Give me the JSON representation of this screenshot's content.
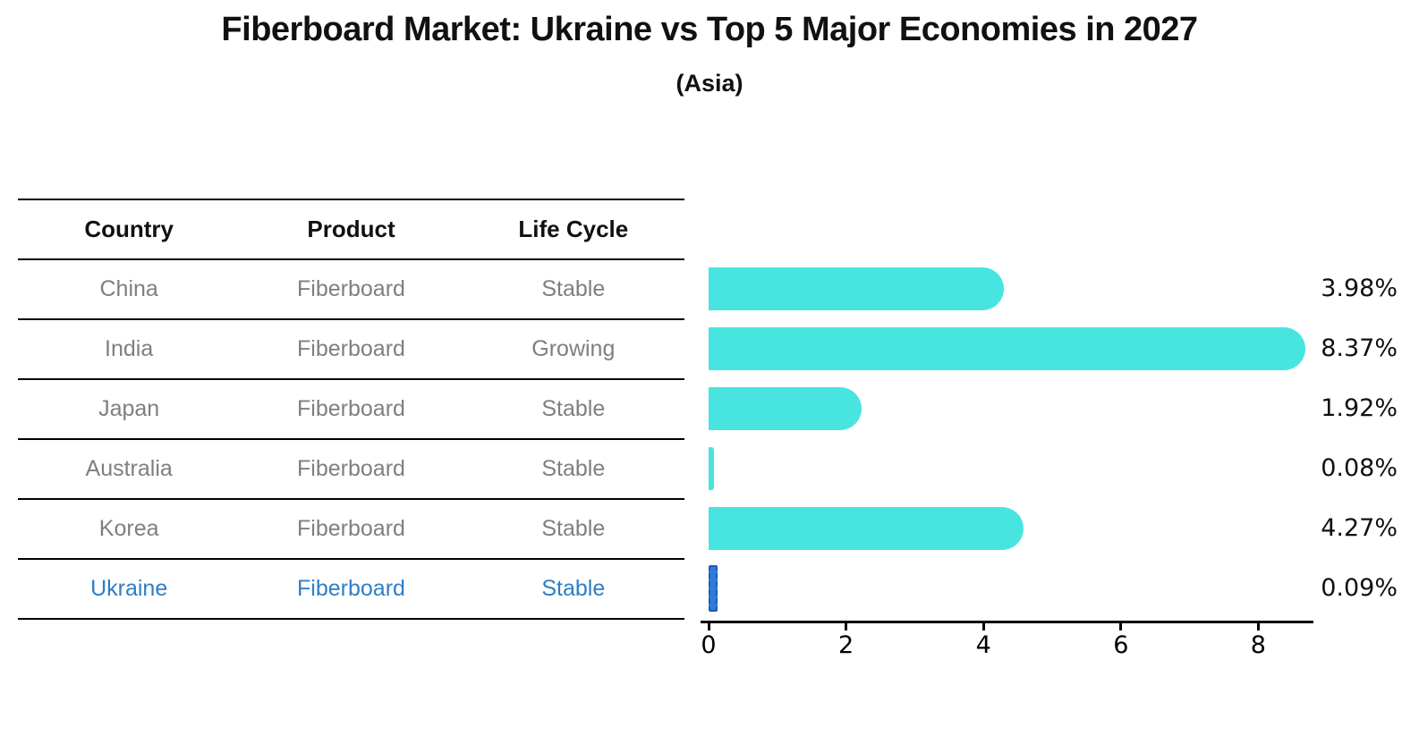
{
  "title": "Fiberboard Market: Ukraine vs Top 5 Major Economies in 2027",
  "subtitle": "(Asia)",
  "table": {
    "headers": [
      "Country",
      "Product",
      "Life Cycle"
    ],
    "rows": [
      {
        "country": "China",
        "product": "Fiberboard",
        "life_cycle": "Stable"
      },
      {
        "country": "India",
        "product": "Fiberboard",
        "life_cycle": "Growing"
      },
      {
        "country": "Japan",
        "product": "Fiberboard",
        "life_cycle": "Stable"
      },
      {
        "country": "Australia",
        "product": "Fiberboard",
        "life_cycle": "Stable"
      },
      {
        "country": "Korea",
        "product": "Fiberboard",
        "life_cycle": "Stable"
      },
      {
        "country": "Ukraine",
        "product": "Fiberboard",
        "life_cycle": "Stable"
      }
    ],
    "highlight_row": "Ukraine"
  },
  "chart_data": {
    "type": "bar",
    "orientation": "horizontal",
    "categories": [
      "China",
      "India",
      "Japan",
      "Australia",
      "Korea",
      "Ukraine"
    ],
    "values": [
      3.98,
      8.37,
      1.92,
      0.08,
      4.27,
      0.09
    ],
    "value_labels": [
      "3.98%",
      "8.37%",
      "1.92%",
      "0.08%",
      "4.27%",
      "0.09%"
    ],
    "x_ticks": [
      0,
      2,
      4,
      6,
      8
    ],
    "xlim": [
      0,
      8.8
    ],
    "grid": false,
    "legend": null,
    "xlabel": "",
    "ylabel": "",
    "highlight_index": 5
  },
  "colors": {
    "bar": "#48e5e0",
    "highlight_bar": "#2d7dd7",
    "highlight_bar_edge": "#1e5ab4",
    "highlight_text": "#2e7ec6",
    "table_text": "#7f7f7f",
    "heading_text": "#111111",
    "axis": "#000000"
  }
}
